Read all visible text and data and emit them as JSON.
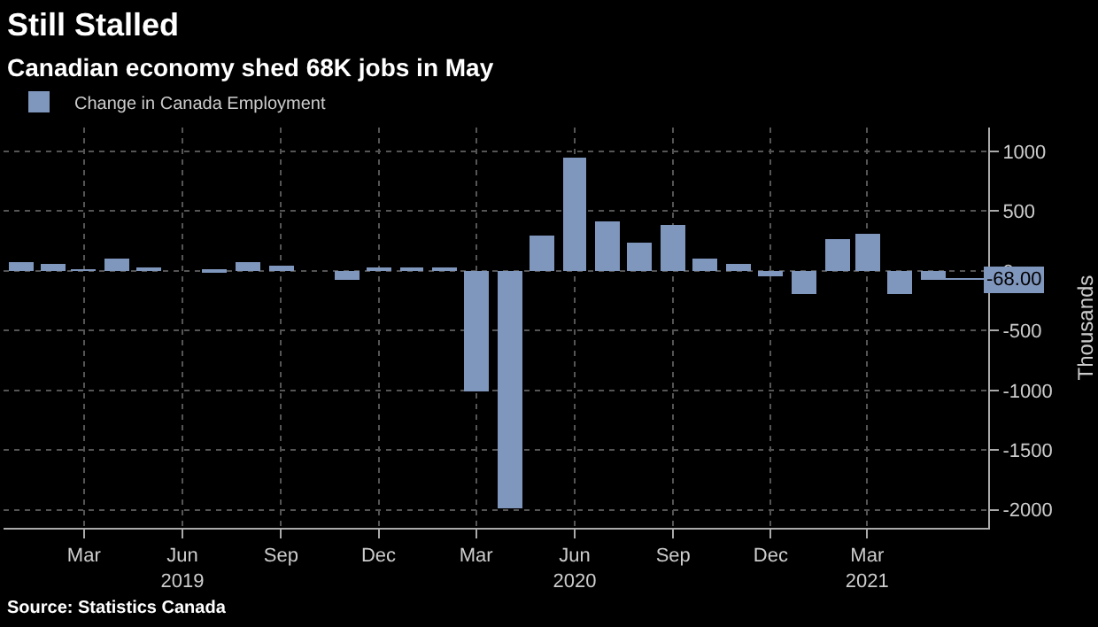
{
  "chart_data": {
    "type": "bar",
    "title": "Still Stalled",
    "subtitle": "Canadian economy shed 68K jobs in May",
    "ylabel": "Thousands",
    "x": [
      "2019-01",
      "2019-02",
      "2019-03",
      "2019-04",
      "2019-05",
      "2019-06",
      "2019-07",
      "2019-08",
      "2019-09",
      "2019-10",
      "2019-11",
      "2019-12",
      "2020-01",
      "2020-02",
      "2020-03",
      "2020-04",
      "2020-05",
      "2020-06",
      "2020-07",
      "2020-08",
      "2020-09",
      "2020-10",
      "2020-11",
      "2020-12",
      "2021-01",
      "2021-02",
      "2021-03",
      "2021-04",
      "2021-05"
    ],
    "series": [
      {
        "name": "Change in Canada Employment",
        "color": "#7f96bd",
        "values": [
          70,
          60,
          10,
          100,
          30,
          0,
          -20,
          80,
          50,
          0,
          -70,
          30,
          30,
          30,
          -1010,
          -1990,
          290,
          950,
          420,
          230,
          380,
          100,
          60,
          -50,
          -200,
          270,
          310,
          -190,
          -68
        ]
      }
    ],
    "xlim": [
      "2018-12-16",
      "2021-06-22"
    ],
    "xticks": [
      {
        "value": "2019-03",
        "label": "Mar"
      },
      {
        "value": "2019-06",
        "label": "Jun\n2019"
      },
      {
        "value": "2019-09",
        "label": "Sep"
      },
      {
        "value": "2019-12",
        "label": "Dec"
      },
      {
        "value": "2020-03",
        "label": "Mar"
      },
      {
        "value": "2020-06",
        "label": "Jun\n2020"
      },
      {
        "value": "2020-09",
        "label": "Sep"
      },
      {
        "value": "2020-12",
        "label": "Dec"
      },
      {
        "value": "2021-03",
        "label": "Mar\n2021"
      }
    ],
    "ylim": [
      -2150,
      1200
    ],
    "yticks": [
      -2000,
      -1500,
      -1000,
      -500,
      0,
      500,
      1000
    ],
    "grid": true,
    "legend": "top left",
    "annotations": [
      {
        "text": "-68.00",
        "x": "2021-05",
        "y": -68
      },
      "Source: Statistics Canada"
    ]
  }
}
